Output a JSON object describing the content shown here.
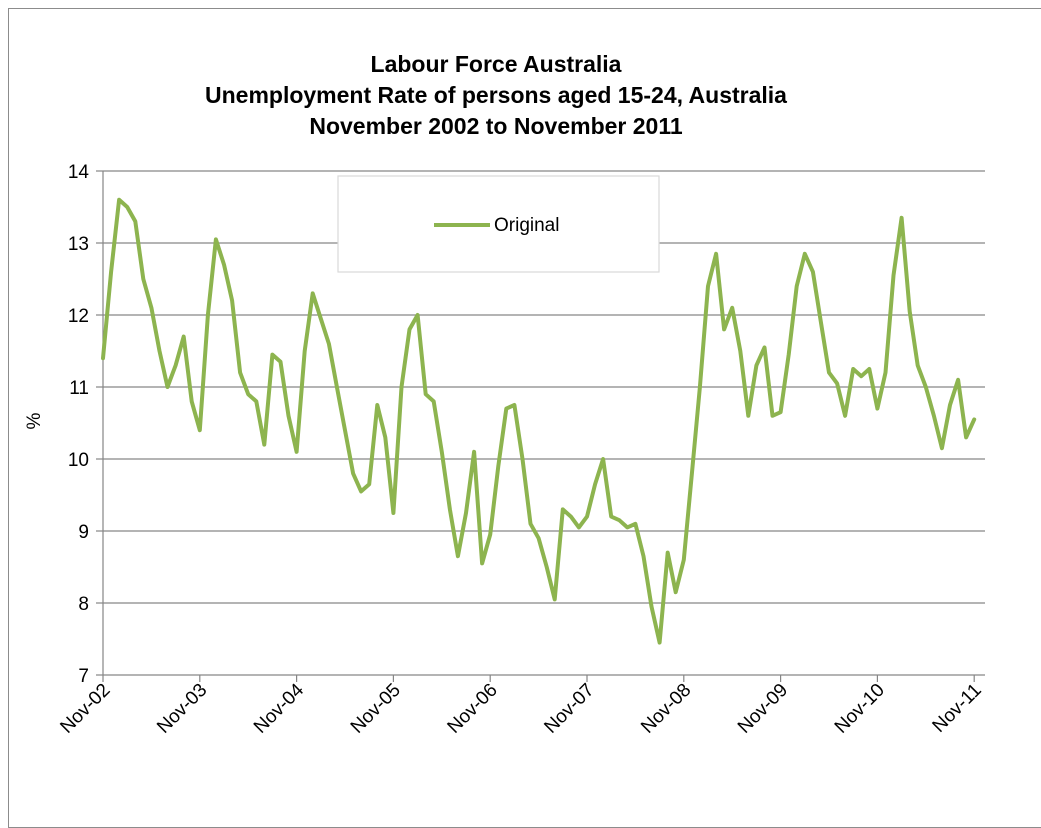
{
  "chart_data": {
    "type": "line",
    "title_lines": [
      "Labour Force Australia",
      "Unemployment Rate of persons aged 15-24,  Australia",
      "November 2002 to November 2011"
    ],
    "xlabel": "",
    "ylabel": "%",
    "ylim": [
      7,
      14
    ],
    "yticks": [
      7,
      8,
      9,
      10,
      11,
      12,
      13,
      14
    ],
    "xtick_labels": [
      "Nov-02",
      "Nov-03",
      "Nov-04",
      "Nov-05",
      "Nov-06",
      "Nov-07",
      "Nov-08",
      "Nov-09",
      "Nov-10",
      "Nov-11"
    ],
    "grid": "horizontal",
    "legend_position": "top-center",
    "series": [
      {
        "name": "Original",
        "color": "#8db44f",
        "start": "Nov-02",
        "frequency": "monthly",
        "values": [
          11.4,
          12.6,
          13.6,
          13.5,
          13.3,
          12.5,
          12.1,
          11.5,
          11.0,
          11.3,
          11.7,
          10.8,
          10.4,
          12.0,
          13.05,
          12.7,
          12.2,
          11.2,
          10.9,
          10.8,
          10.2,
          11.45,
          11.35,
          10.6,
          10.1,
          11.5,
          12.3,
          11.95,
          11.6,
          11.0,
          10.4,
          9.8,
          9.55,
          9.65,
          10.75,
          10.3,
          9.25,
          11.0,
          11.8,
          12.0,
          10.9,
          10.8,
          10.1,
          9.3,
          8.65,
          9.25,
          10.1,
          8.55,
          8.95,
          9.9,
          10.7,
          10.75,
          10.0,
          9.1,
          8.9,
          8.5,
          8.05,
          9.3,
          9.2,
          9.05,
          9.2,
          9.65,
          10.0,
          9.2,
          9.15,
          9.05,
          9.1,
          8.65,
          7.95,
          7.45,
          8.7,
          8.15,
          8.6,
          9.8,
          11.0,
          12.4,
          12.85,
          11.8,
          12.1,
          11.5,
          10.6,
          11.3,
          11.55,
          10.6,
          10.65,
          11.45,
          12.4,
          12.85,
          12.6,
          11.9,
          11.2,
          11.05,
          10.6,
          11.25,
          11.15,
          11.25,
          10.7,
          11.2,
          12.55,
          13.35,
          12.05,
          11.3,
          11.0,
          10.6,
          10.15,
          10.75,
          11.1,
          10.3,
          10.55
        ]
      }
    ]
  }
}
